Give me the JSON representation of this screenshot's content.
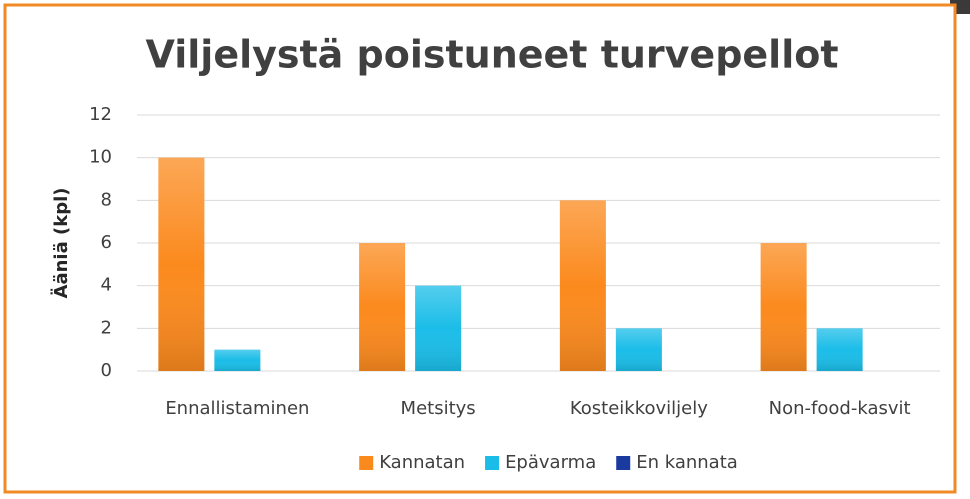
{
  "chart_data": {
    "type": "bar",
    "title": "Viljelystä poistuneet turvepellot",
    "y_label": "Ääniä (kpl)",
    "categories": [
      "Ennallistaminen",
      "Metsitys",
      "Kosteikkoviljely",
      "Non-food-kasvit"
    ],
    "series": [
      {
        "name": "Kannatan",
        "color": "#fb8a1e",
        "values": [
          10,
          6,
          8,
          6
        ]
      },
      {
        "name": "Epävarma",
        "color": "#1bbde8",
        "values": [
          1,
          4,
          2,
          2
        ]
      },
      {
        "name": "En kannata",
        "color": "#1a3aa0",
        "values": [
          0,
          0,
          0,
          0
        ]
      }
    ],
    "ylim": [
      0,
      12
    ],
    "yticks": [
      0,
      2,
      4,
      6,
      8,
      10,
      12
    ],
    "grid": true,
    "legend": "bottom"
  }
}
